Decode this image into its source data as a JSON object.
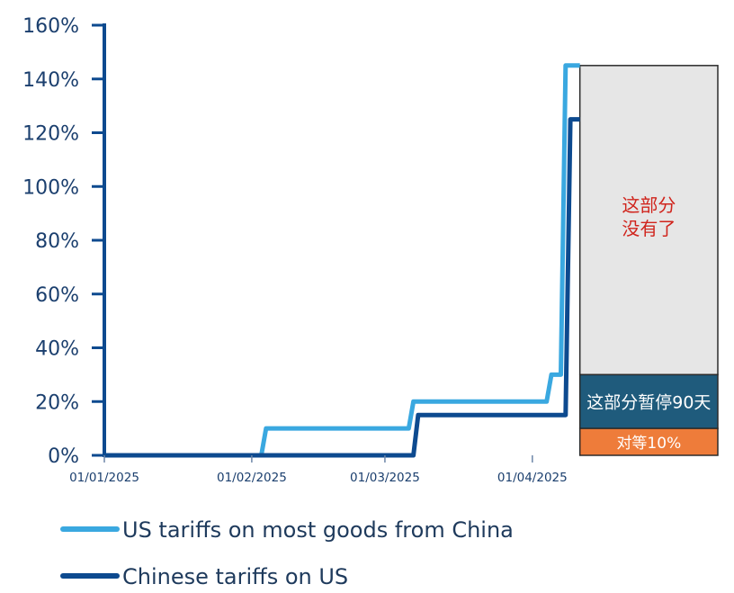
{
  "colors": {
    "us_line": "#3aa8e0",
    "cn_line": "#0d4a8f",
    "axis": "#0d4a8f",
    "tick_text": "#1b3f6e",
    "gray_box": "#e6e6e6",
    "navy_box": "#1f5b7c",
    "orange_box": "#ee7c3a",
    "red_text": "#d0241c"
  },
  "chart_data": {
    "type": "line",
    "title": "",
    "xlabel": "",
    "ylabel": "",
    "ylim": [
      0,
      160
    ],
    "yticks": [
      0,
      20,
      40,
      60,
      80,
      100,
      120,
      140,
      160
    ],
    "ytick_labels": [
      "0%",
      "20%",
      "40%",
      "60%",
      "80%",
      "100%",
      "120%",
      "140%",
      "160%"
    ],
    "xlim": [
      0,
      129
    ],
    "xticks": [
      0,
      31,
      59,
      90
    ],
    "xtick_labels": [
      "01/01/2025",
      "01/02/2025",
      "01/03/2025",
      "01/04/2025"
    ],
    "series": [
      {
        "name": "US tariffs on most goods from China",
        "key": "us",
        "points": [
          [
            0,
            0
          ],
          [
            33,
            0
          ],
          [
            34,
            10
          ],
          [
            64,
            10
          ],
          [
            65,
            20
          ],
          [
            93,
            20
          ],
          [
            94,
            30
          ],
          [
            96,
            30
          ],
          [
            97,
            145
          ],
          [
            100,
            145
          ]
        ]
      },
      {
        "name": "Chinese tariffs on US",
        "key": "cn",
        "points": [
          [
            0,
            0
          ],
          [
            65,
            0
          ],
          [
            66,
            15
          ],
          [
            97,
            15
          ],
          [
            98,
            125
          ],
          [
            100,
            125
          ]
        ]
      }
    ],
    "annotations": [
      {
        "key": "removed",
        "text_lines": [
          "这部分",
          "没有了"
        ],
        "x_from": 100,
        "x_to": 129,
        "y_from": 30,
        "y_to": 145
      },
      {
        "key": "paused",
        "text": "这部分暂停90天",
        "x_from": 100,
        "x_to": 129,
        "y_from": 10,
        "y_to": 30
      },
      {
        "key": "reciprocal",
        "text": "对等10%",
        "x_from": 100,
        "x_to": 129,
        "y_from": 0,
        "y_to": 10
      }
    ],
    "legend": [
      "US tariffs on most goods from China",
      "Chinese tariffs on US"
    ],
    "legend_position": "bottom-left"
  }
}
